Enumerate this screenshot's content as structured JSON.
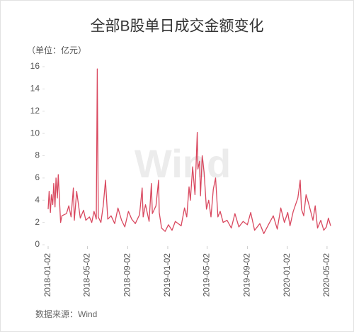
{
  "chart_data": {
    "type": "line",
    "title": "全部B股单日成交金额变化",
    "y_label": "（单位：亿元）",
    "source": "数据来源：Wind",
    "watermark": "Wind",
    "xlim": [
      "2018-01-02",
      "2020-05-13"
    ],
    "xticks": [
      "2018-01-02",
      "2018-05-02",
      "2018-09-02",
      "2019-01-02",
      "2019-05-02",
      "2019-09-02",
      "2020-01-02",
      "2020-05-02"
    ],
    "ylim": [
      0,
      16
    ],
    "yticks": [
      0,
      2,
      4,
      6,
      8,
      10,
      12,
      14,
      16
    ],
    "x": [
      "2018-01-02",
      "2018-01-05",
      "2018-01-09",
      "2018-01-12",
      "2018-01-16",
      "2018-01-19",
      "2018-01-23",
      "2018-01-26",
      "2018-01-30",
      "2018-02-02",
      "2018-02-06",
      "2018-02-09",
      "2018-02-13",
      "2018-02-27",
      "2018-03-06",
      "2018-03-13",
      "2018-03-20",
      "2018-03-23",
      "2018-03-30",
      "2018-04-10",
      "2018-04-20",
      "2018-04-27",
      "2018-05-08",
      "2018-05-15",
      "2018-05-22",
      "2018-05-29",
      "2018-06-01",
      "2018-06-04",
      "2018-06-12",
      "2018-06-19",
      "2018-06-26",
      "2018-07-03",
      "2018-07-13",
      "2018-07-24",
      "2018-08-03",
      "2018-08-14",
      "2018-08-24",
      "2018-09-04",
      "2018-09-14",
      "2018-09-25",
      "2018-10-08",
      "2018-10-16",
      "2018-10-19",
      "2018-10-26",
      "2018-11-06",
      "2018-11-13",
      "2018-11-16",
      "2018-11-27",
      "2018-12-05",
      "2018-12-07",
      "2018-12-14",
      "2018-12-25",
      "2019-01-04",
      "2019-01-15",
      "2019-01-25",
      "2019-02-12",
      "2019-02-22",
      "2019-03-01",
      "2019-03-08",
      "2019-03-12",
      "2019-03-19",
      "2019-03-26",
      "2019-04-02",
      "2019-04-04",
      "2019-04-09",
      "2019-04-12",
      "2019-04-17",
      "2019-04-23",
      "2019-04-30",
      "2019-05-07",
      "2019-05-14",
      "2019-05-21",
      "2019-05-28",
      "2019-06-04",
      "2019-06-11",
      "2019-06-20",
      "2019-07-02",
      "2019-07-15",
      "2019-07-26",
      "2019-08-07",
      "2019-08-20",
      "2019-09-02",
      "2019-09-12",
      "2019-09-24",
      "2019-10-10",
      "2019-10-22",
      "2019-11-05",
      "2019-11-20",
      "2019-12-02",
      "2019-12-13",
      "2019-12-24",
      "2020-01-03",
      "2020-01-10",
      "2020-01-20",
      "2020-02-03",
      "2020-02-10",
      "2020-02-14",
      "2020-02-21",
      "2020-02-28",
      "2020-03-06",
      "2020-03-13",
      "2020-03-20",
      "2020-03-27",
      "2020-04-03",
      "2020-04-13",
      "2020-04-22",
      "2020-04-30",
      "2020-05-06",
      "2020-05-13"
    ],
    "series": [
      {
        "color": "#d9485f",
        "values": [
          3.2,
          4.8,
          2.9,
          4.5,
          3.6,
          5.5,
          3.4,
          6.0,
          4.2,
          6.3,
          3.8,
          2.0,
          2.6,
          2.8,
          3.5,
          2.5,
          5.1,
          2.2,
          4.8,
          2.4,
          3.1,
          2.2,
          2.5,
          2.0,
          3.0,
          2.3,
          15.8,
          2.5,
          2.0,
          3.5,
          5.8,
          2.3,
          2.6,
          1.9,
          3.3,
          2.2,
          1.6,
          3.0,
          2.3,
          1.9,
          2.7,
          5.1,
          2.5,
          3.6,
          2.1,
          5.5,
          2.8,
          3.5,
          5.8,
          2.9,
          1.5,
          1.2,
          1.8,
          1.3,
          2.1,
          1.7,
          3.3,
          2.5,
          5.2,
          4.0,
          7.0,
          4.5,
          10.1,
          6.8,
          7.5,
          4.4,
          8.0,
          6.5,
          3.2,
          4.0,
          2.5,
          5.0,
          6.0,
          2.5,
          3.0,
          2.0,
          2.2,
          1.5,
          2.8,
          1.6,
          2.1,
          1.8,
          2.9,
          1.3,
          1.9,
          1.0,
          1.8,
          2.6,
          1.4,
          3.3,
          2.0,
          2.9,
          1.7,
          3.0,
          4.2,
          5.8,
          3.2,
          2.6,
          4.5,
          3.8,
          3.0,
          2.2,
          3.5,
          1.5,
          2.2,
          1.3,
          1.6,
          2.4,
          1.7
        ]
      }
    ]
  }
}
